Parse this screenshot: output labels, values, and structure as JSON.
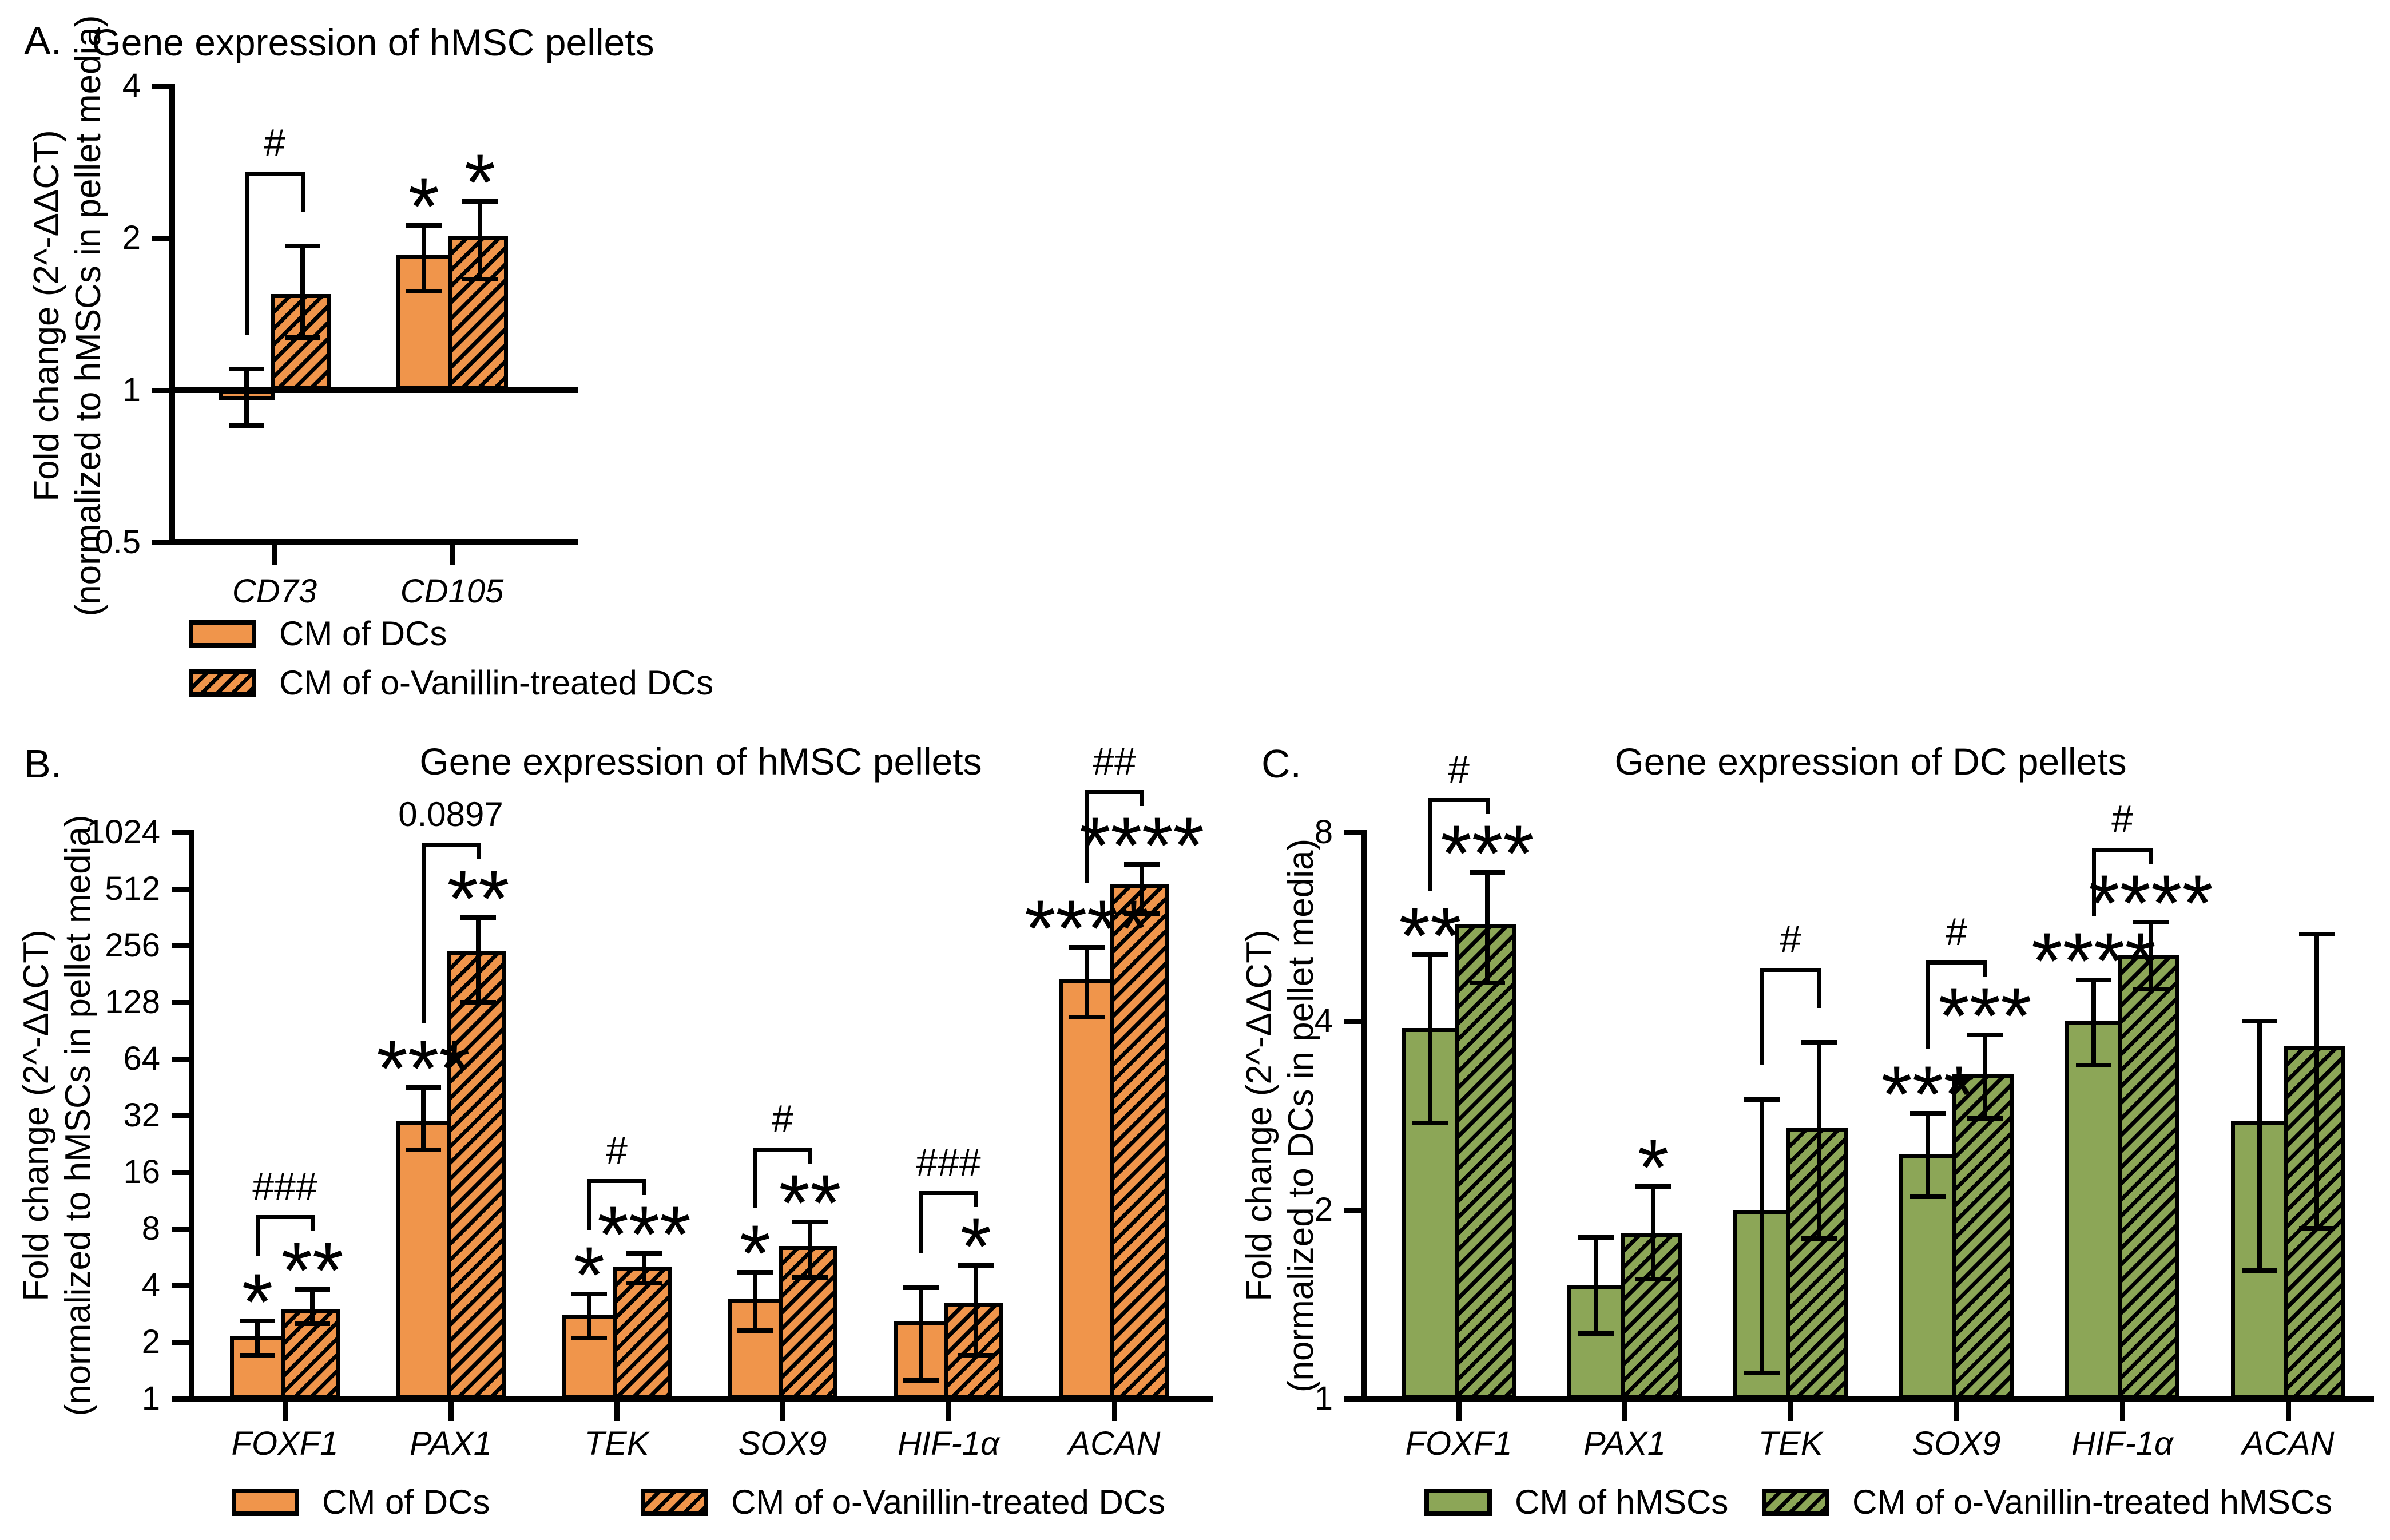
{
  "colors": {
    "orange": "#F0954B",
    "green": "#8CA657",
    "ink": "#000000"
  },
  "chart_data": [
    {
      "id": "A",
      "type": "grouped-bar",
      "scale": "log2",
      "panel_label": "A.",
      "title": "Gene expression of hMSC pellets",
      "ylabel": "Fold change (2^-ΔΔCT)",
      "ylabel2": "(normalized to hMSCs in pellet media)",
      "ylim": [
        0.5,
        4
      ],
      "baseline": 1,
      "yticks": [
        4,
        2,
        1,
        0.5
      ],
      "grid": false,
      "categories": [
        "CD73",
        "CD105"
      ],
      "series": [
        {
          "name": "CM of DCs",
          "pattern": "solid",
          "color_key": "orange",
          "values": [
            0.96,
            1.85
          ],
          "err_lo": [
            0.85,
            1.57
          ],
          "err_hi": [
            1.1,
            2.12
          ],
          "significance": [
            "",
            "*"
          ]
        },
        {
          "name": "CM of o-Vanillin-treated DCs",
          "pattern": "hatched",
          "color_key": "orange",
          "values": [
            1.55,
            2.02
          ],
          "err_lo": [
            1.27,
            1.66
          ],
          "err_hi": [
            1.93,
            2.36
          ],
          "significance": [
            "",
            "*"
          ]
        }
      ],
      "pair_annotations": [
        "#",
        ""
      ]
    },
    {
      "id": "B",
      "type": "grouped-bar",
      "scale": "log2",
      "panel_label": "B.",
      "title": "Gene expression of hMSC pellets",
      "ylabel": "Fold change (2^-ΔΔCT)",
      "ylabel2": "(normalized to hMSCs in pellet media)",
      "ylim": [
        1,
        1024
      ],
      "baseline": 1,
      "yticks": [
        1024,
        512,
        256,
        128,
        64,
        32,
        16,
        8,
        4,
        2,
        1
      ],
      "grid": false,
      "categories": [
        "FOXF1",
        "PAX1",
        "TEK",
        "SOX9",
        "HIF-1α",
        "ACAN"
      ],
      "series": [
        {
          "name": "CM of DCs",
          "pattern": "solid",
          "color_key": "orange",
          "values": [
            2.15,
            30,
            2.8,
            3.4,
            2.6,
            170
          ],
          "err_lo": [
            1.7,
            21,
            2.1,
            2.3,
            1.25,
            107
          ],
          "err_hi": [
            2.6,
            45,
            3.6,
            4.7,
            3.9,
            250
          ],
          "significance": [
            "*",
            "***",
            "*",
            "*",
            "",
            "****"
          ]
        },
        {
          "name": "CM of o-Vanillin-treated DCs",
          "pattern": "hatched",
          "color_key": "orange",
          "values": [
            3.0,
            240,
            5.0,
            6.5,
            3.25,
            540
          ],
          "err_lo": [
            2.5,
            128,
            4.1,
            4.4,
            1.7,
            380
          ],
          "err_hi": [
            3.8,
            360,
            5.9,
            8.7,
            5.1,
            690
          ],
          "significance": [
            "**",
            "**",
            "***",
            "**",
            "*",
            "****"
          ]
        }
      ],
      "pair_annotations": [
        "###",
        "0.0897",
        "#",
        "#",
        "###",
        "##"
      ]
    },
    {
      "id": "C",
      "type": "grouped-bar",
      "scale": "log2",
      "panel_label": "C.",
      "title": "Gene expression of DC pellets",
      "ylabel": "Fold change (2^-ΔΔCT)",
      "ylabel2": "(normalized to DCs in pellet media)",
      "ylim": [
        1,
        8
      ],
      "baseline": 1,
      "yticks": [
        8,
        4,
        2,
        1
      ],
      "grid": false,
      "categories": [
        "FOXF1",
        "PAX1",
        "TEK",
        "SOX9",
        "HIF-1α",
        "ACAN"
      ],
      "series": [
        {
          "name": "CM of hMSCs",
          "pattern": "solid",
          "color_key": "green",
          "values": [
            3.9,
            1.52,
            2.0,
            2.45,
            4.0,
            2.77
          ],
          "err_lo": [
            2.75,
            1.27,
            1.1,
            2.1,
            3.4,
            1.6
          ],
          "err_hi": [
            5.1,
            1.81,
            3.0,
            2.85,
            4.65,
            4.0
          ],
          "significance": [
            "**",
            "",
            "",
            "***",
            "****",
            ""
          ]
        },
        {
          "name": "CM of o-Vanillin-treated hMSCs",
          "pattern": "hatched",
          "color_key": "green",
          "values": [
            5.7,
            1.84,
            2.7,
            3.3,
            5.1,
            3.65
          ],
          "err_lo": [
            4.6,
            1.55,
            1.8,
            2.8,
            4.5,
            1.87
          ],
          "err_hi": [
            6.9,
            2.18,
            3.7,
            3.8,
            5.75,
            5.5
          ],
          "significance": [
            "***",
            "*",
            "",
            "***",
            "****",
            ""
          ]
        }
      ],
      "pair_annotations": [
        "#",
        "",
        "#",
        "#",
        "#",
        ""
      ]
    }
  ]
}
